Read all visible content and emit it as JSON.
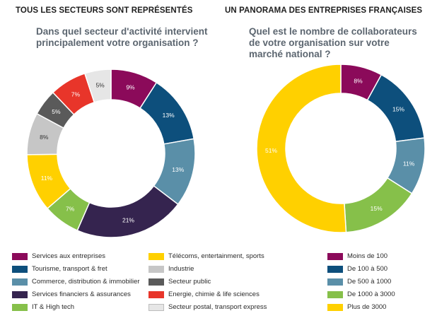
{
  "left": {
    "section_title": "TOUS LES SECTEURS SONT REPRÉSENTÉS",
    "question_line1": "Dans quel secteur d'activité intervient",
    "question_line2": "principalement votre organisation ?"
  },
  "right": {
    "section_title": "UN PANORAMA DES ENTREPRISES FRANÇAISES",
    "question_line1": "Quel est le nombre de collaborateurs",
    "question_line2": "de votre organisation sur votre",
    "question_line3": "marché national ?"
  },
  "chart_data": [
    {
      "type": "pie",
      "subtype": "donut",
      "title": "Dans quel secteur d'activité intervient principalement votre organisation ?",
      "categories": [
        "Services aux entreprises",
        "Tourisme, transport & fret",
        "Commerce, distribution & immobilier",
        "Services financiers & assurances",
        "IT & High tech",
        "Télécoms, entertainment, sports",
        "Industrie",
        "Secteur public",
        "Energie, chimie & life sciences",
        "Secteur postal, transport express"
      ],
      "values": [
        9,
        13,
        13,
        21,
        7,
        11,
        8,
        5,
        7,
        5
      ],
      "labels": [
        "9%",
        "13%",
        "13%",
        "21%",
        "7%",
        "11%",
        "8%",
        "5%",
        "7%",
        "5%"
      ],
      "colors": [
        "#8b0a5a",
        "#0d4f7c",
        "#5a8fa8",
        "#35244f",
        "#86c04a",
        "#ffd000",
        "#c6c6c6",
        "#5a5a5a",
        "#e8352a",
        "#e6e6e6"
      ],
      "label_colors": [
        "#ffffff",
        "#ffffff",
        "#ffffff",
        "#ffffff",
        "#ffffff",
        "#ffffff",
        "#333333",
        "#ffffff",
        "#ffffff",
        "#333333"
      ],
      "legend_columns": [
        [
          0,
          1,
          2,
          3,
          4
        ],
        [
          5,
          6,
          7,
          8,
          9
        ]
      ]
    },
    {
      "type": "pie",
      "subtype": "donut",
      "title": "Quel est le nombre de collaborateurs de votre organisation sur votre marché national ?",
      "categories": [
        "Moins de 100",
        "De 100 à 500",
        "De 500 à 1000",
        "De 1000 à 3000",
        "Plus de 3000"
      ],
      "values": [
        8,
        15,
        11,
        15,
        51
      ],
      "labels": [
        "8%",
        "15%",
        "11%",
        "15%",
        "51%"
      ],
      "colors": [
        "#8b0a5a",
        "#0d4f7c",
        "#5a8fa8",
        "#86c04a",
        "#ffd000"
      ],
      "label_colors": [
        "#ffffff",
        "#ffffff",
        "#ffffff",
        "#ffffff",
        "#ffffff"
      ],
      "legend_columns": [
        [
          0,
          1,
          2,
          3,
          4
        ]
      ]
    }
  ]
}
